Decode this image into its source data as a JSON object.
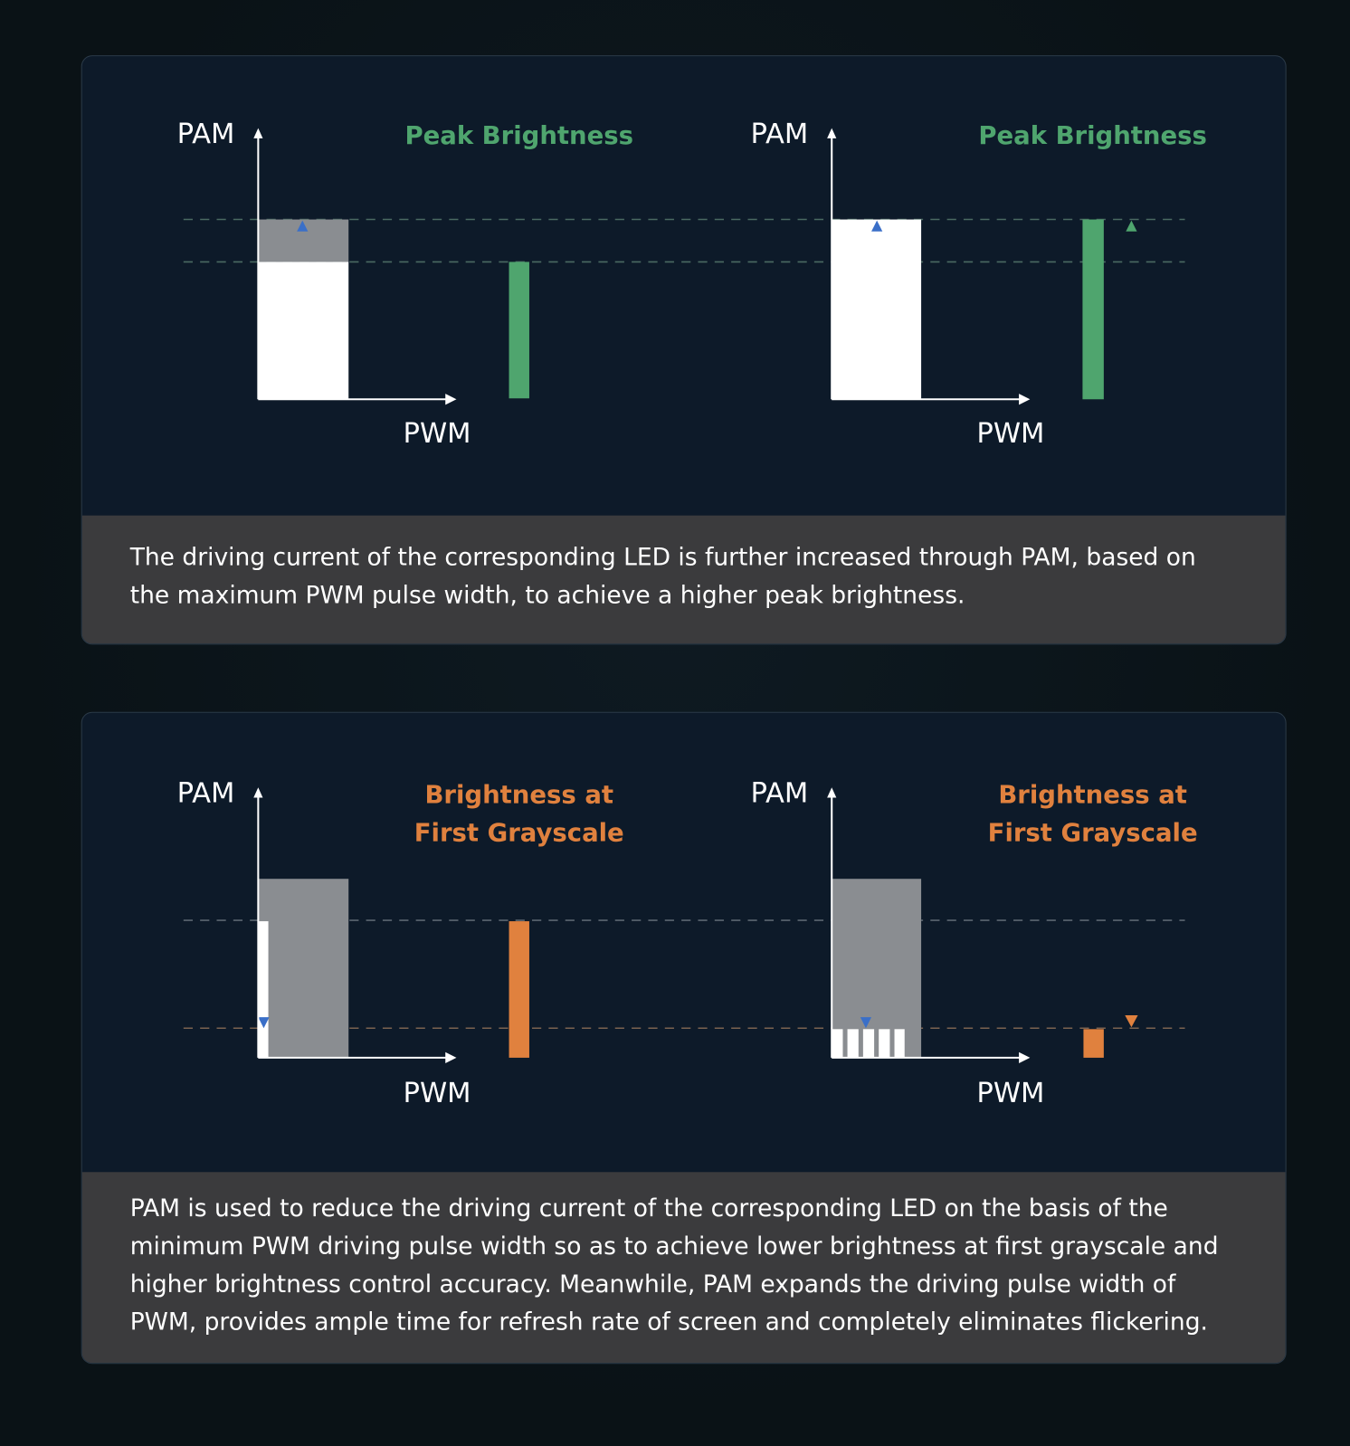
{
  "panels": [
    {
      "left": {
        "y_axis": "PAM",
        "x_axis": "PWM",
        "title_line1": "Peak Brightness",
        "title_line2": ""
      },
      "right": {
        "y_axis": "PAM",
        "x_axis": "PWM",
        "title_line1": "Peak Brightness",
        "title_line2": ""
      },
      "caption": "The driving current of the corresponding LED is further increased through PAM, based on the maximum PWM pulse width, to achieve a higher peak brightness.",
      "accent": "#4fa56e"
    },
    {
      "left": {
        "y_axis": "PAM",
        "x_axis": "PWM",
        "title_line1": "Brightness at",
        "title_line2": "First Grayscale"
      },
      "right": {
        "y_axis": "PAM",
        "x_axis": "PWM",
        "title_line1": "Brightness at",
        "title_line2": "First Grayscale"
      },
      "caption": "PAM is used to reduce the driving current of the corresponding LED on the basis of the minimum PWM driving pulse width so as to achieve lower brightness at first grayscale and higher brightness control accuracy. Meanwhile, PAM expands the driving pulse width of PWM, provides ample time for refresh rate of screen and completely eliminates flickering.",
      "accent": "#e0813e"
    }
  ]
}
